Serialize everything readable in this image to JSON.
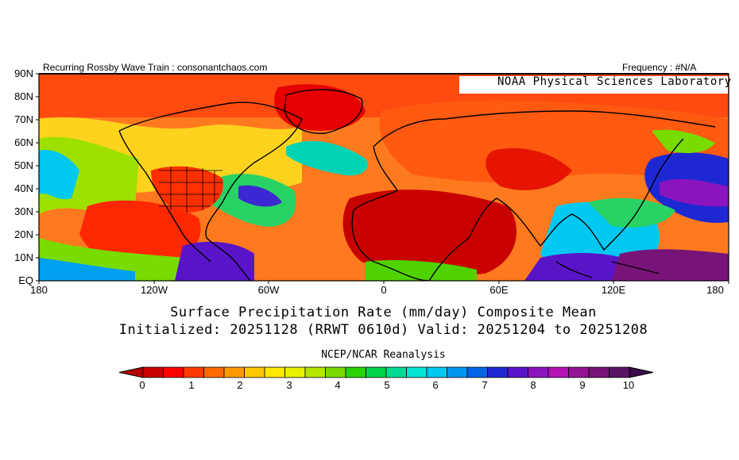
{
  "header": {
    "left_text": "Recurring Rossby Wave Train : consonantchaos.com",
    "right_text": "Frequency : #N/A",
    "lab_label": "NOAA Physical Sciences Laboratory"
  },
  "map": {
    "lat_ticks": [
      "90N",
      "80N",
      "70N",
      "60N",
      "50N",
      "40N",
      "30N",
      "20N",
      "10N",
      "EQ"
    ],
    "lon_ticks": [
      "180",
      "120W",
      "60W",
      "0",
      "60E",
      "120E",
      "180"
    ],
    "title_line1": "Surface Precipitation Rate (mm/day) Composite Mean",
    "title_line2": "Initialized: 20251128 (RRWT 0610d) Valid: 20251204 to 20251208",
    "source": "NCEP/NCAR Reanalysis"
  },
  "colorbar": {
    "labels": [
      "0",
      "1",
      "2",
      "3",
      "4",
      "5",
      "6",
      "7",
      "8",
      "9",
      "10"
    ],
    "colors": [
      "#c80000",
      "#ff0000",
      "#ff3a00",
      "#ff6a00",
      "#ff9a00",
      "#ffc800",
      "#ffe800",
      "#e6f000",
      "#b4e600",
      "#78dc00",
      "#2ad200",
      "#00d24a",
      "#00dc96",
      "#00e6d2",
      "#00c8f0",
      "#0096f0",
      "#0064e6",
      "#1e28d2",
      "#5a14c8",
      "#8c14be",
      "#b414b4",
      "#961496",
      "#781478",
      "#5a1464"
    ],
    "left_end_color": "#b40000",
    "right_end_color": "#3c0a4a"
  }
}
